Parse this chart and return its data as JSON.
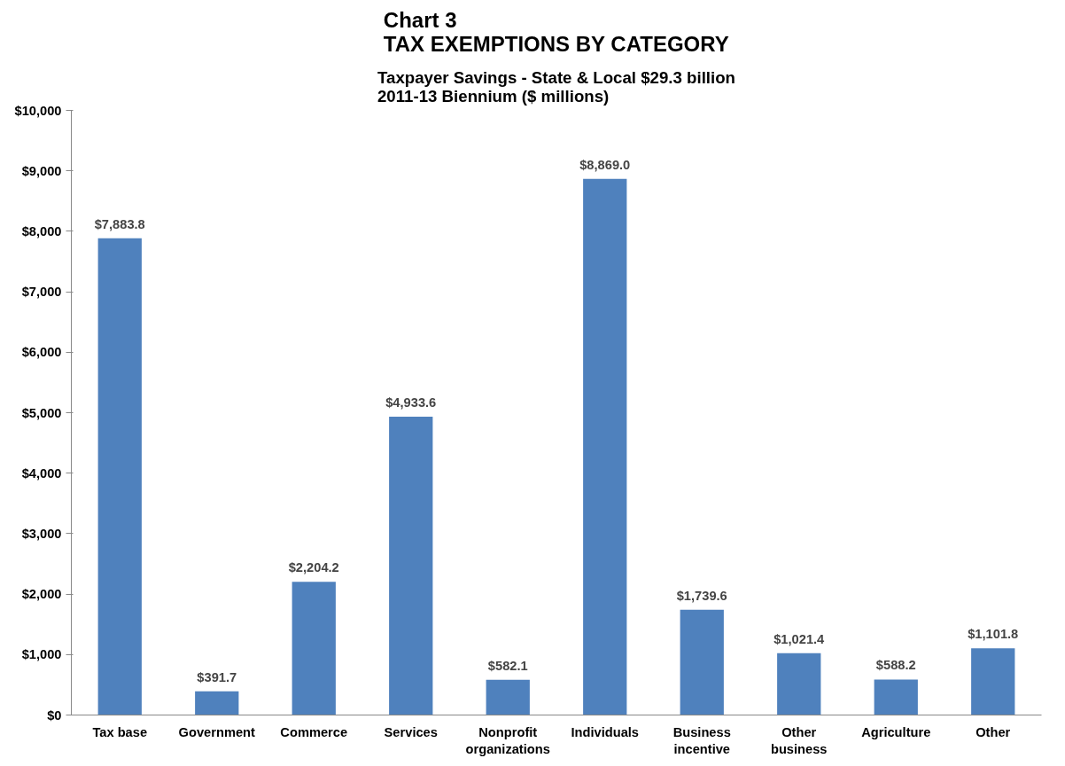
{
  "chart_data": {
    "type": "bar",
    "title": "Chart 3\nTAX EXEMPTIONS BY CATEGORY",
    "subtitle": "Taxpayer Savings - State & Local $29.3 billion\n2011-13 Biennium ($ millions)",
    "categories": [
      "Tax base",
      "Government",
      "Commerce",
      "Services",
      "Nonprofit\norganizations",
      "Individuals",
      "Business\nincentive",
      "Other\nbusiness",
      "Agriculture",
      "Other"
    ],
    "values": [
      7883.8,
      391.7,
      2204.2,
      4933.6,
      582.1,
      8869.0,
      1739.6,
      1021.4,
      588.2,
      1101.8
    ],
    "value_labels": [
      "$7,883.8",
      "$391.7",
      "$2,204.2",
      "$4,933.6",
      "$582.1",
      "$8,869.0",
      "$1,739.6",
      "$1,021.4",
      "$588.2",
      "$1,101.8"
    ],
    "color": "#4f81bd",
    "ylim": [
      0,
      10000
    ],
    "yticks": [
      {
        "value": 0,
        "label": "$0"
      },
      {
        "value": 1000,
        "label": "$1,000"
      },
      {
        "value": 2000,
        "label": "$2,000"
      },
      {
        "value": 3000,
        "label": "$3,000"
      },
      {
        "value": 4000,
        "label": "$4,000"
      },
      {
        "value": 5000,
        "label": "$5,000"
      },
      {
        "value": 6000,
        "label": "$6,000"
      },
      {
        "value": 7000,
        "label": "$7,000"
      },
      {
        "value": 8000,
        "label": "$8,000"
      },
      {
        "value": 9000,
        "label": "$9,000"
      },
      {
        "value": 10000,
        "label": "$10,000"
      }
    ],
    "grid": false
  }
}
